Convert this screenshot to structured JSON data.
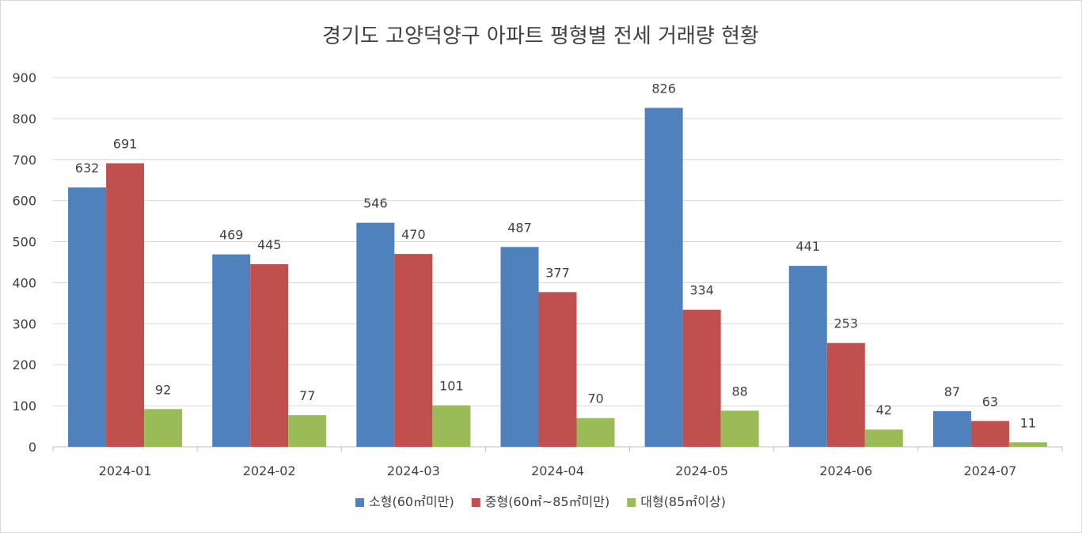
{
  "chart_data": {
    "type": "bar",
    "title": "경기도 고양덕양구 아파트 평형별 전세 거래량 현황",
    "xlabel": "",
    "ylabel": "",
    "categories": [
      "2024-01",
      "2024-02",
      "2024-03",
      "2024-04",
      "2024-05",
      "2024-06",
      "2024-07"
    ],
    "series": [
      {
        "name": "소형(60㎡미만)",
        "color": "#4f81bd",
        "values": [
          632,
          469,
          546,
          487,
          826,
          441,
          87
        ]
      },
      {
        "name": "중형(60㎡~85㎡미만)",
        "color": "#c0504d",
        "values": [
          691,
          445,
          470,
          377,
          334,
          253,
          63
        ]
      },
      {
        "name": "대형(85㎡이상)",
        "color": "#9bbb59",
        "values": [
          92,
          77,
          101,
          70,
          88,
          42,
          11
        ]
      }
    ],
    "ylim": [
      0,
      900
    ],
    "yticks": [
      0,
      100,
      200,
      300,
      400,
      500,
      600,
      700,
      800,
      900
    ],
    "grid": true,
    "legend_position": "bottom"
  }
}
